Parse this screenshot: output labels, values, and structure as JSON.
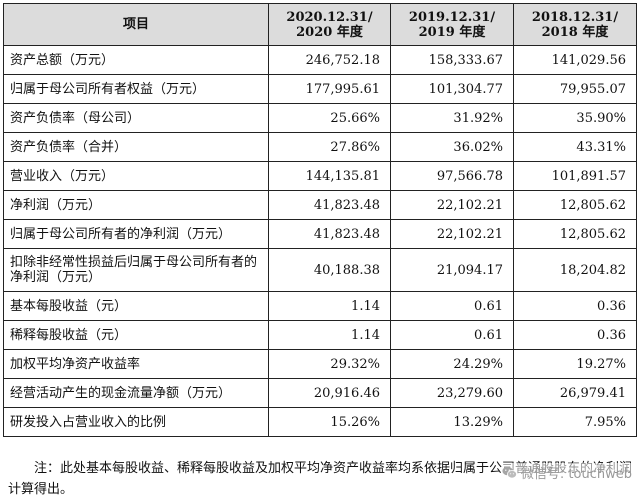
{
  "table": {
    "headers": [
      {
        "line1": "项目",
        "line2": ""
      },
      {
        "line1": "2020.12.31/",
        "line2": "2020 年度"
      },
      {
        "line1": "2019.12.31/",
        "line2": "2019 年度"
      },
      {
        "line1": "2018.12.31/",
        "line2": "2018 年度"
      }
    ],
    "rows": [
      {
        "label": "资产总额（万元）",
        "values": [
          "246,752.18",
          "158,333.67",
          "141,029.56"
        ]
      },
      {
        "label": "归属于母公司所有者权益（万元）",
        "values": [
          "177,995.61",
          "101,304.77",
          "79,955.07"
        ]
      },
      {
        "label": "资产负债率（母公司）",
        "values": [
          "25.66%",
          "31.92%",
          "35.90%"
        ]
      },
      {
        "label": "资产负债率（合并）",
        "values": [
          "27.86%",
          "36.02%",
          "43.31%"
        ]
      },
      {
        "label": "营业收入（万元）",
        "values": [
          "144,135.81",
          "97,566.78",
          "101,891.57"
        ]
      },
      {
        "label": "净利润（万元）",
        "values": [
          "41,823.48",
          "22,102.21",
          "12,805.62"
        ]
      },
      {
        "label": "归属于母公司所有者的净利润（万元）",
        "values": [
          "41,823.48",
          "22,102.21",
          "12,805.62"
        ]
      },
      {
        "label": "扣除非经常性损益后归属于母公司所有者的净利润（万元）",
        "values": [
          "40,188.38",
          "21,094.17",
          "18,204.82"
        ],
        "tall": true
      },
      {
        "label": "基本每股收益（元）",
        "values": [
          "1.14",
          "0.61",
          "0.36"
        ]
      },
      {
        "label": "稀释每股收益（元）",
        "values": [
          "1.14",
          "0.61",
          "0.36"
        ]
      },
      {
        "label": "加权平均净资产收益率",
        "values": [
          "29.32%",
          "24.29%",
          "19.27%"
        ]
      },
      {
        "label": "经营活动产生的现金流量净额（万元）",
        "values": [
          "20,916.46",
          "23,279.60",
          "26,979.41"
        ]
      },
      {
        "label": "研发投入占营业收入的比例",
        "values": [
          "15.26%",
          "13.29%",
          "7.95%"
        ]
      }
    ]
  },
  "note": "注：此处基本每股收益、稀释每股收益及加权平均净资产收益率均系依据归属于公司普通股股东的净利润计算得出。",
  "watermark": {
    "icon": "wechat-icon",
    "text": "微信号: touchweb"
  }
}
